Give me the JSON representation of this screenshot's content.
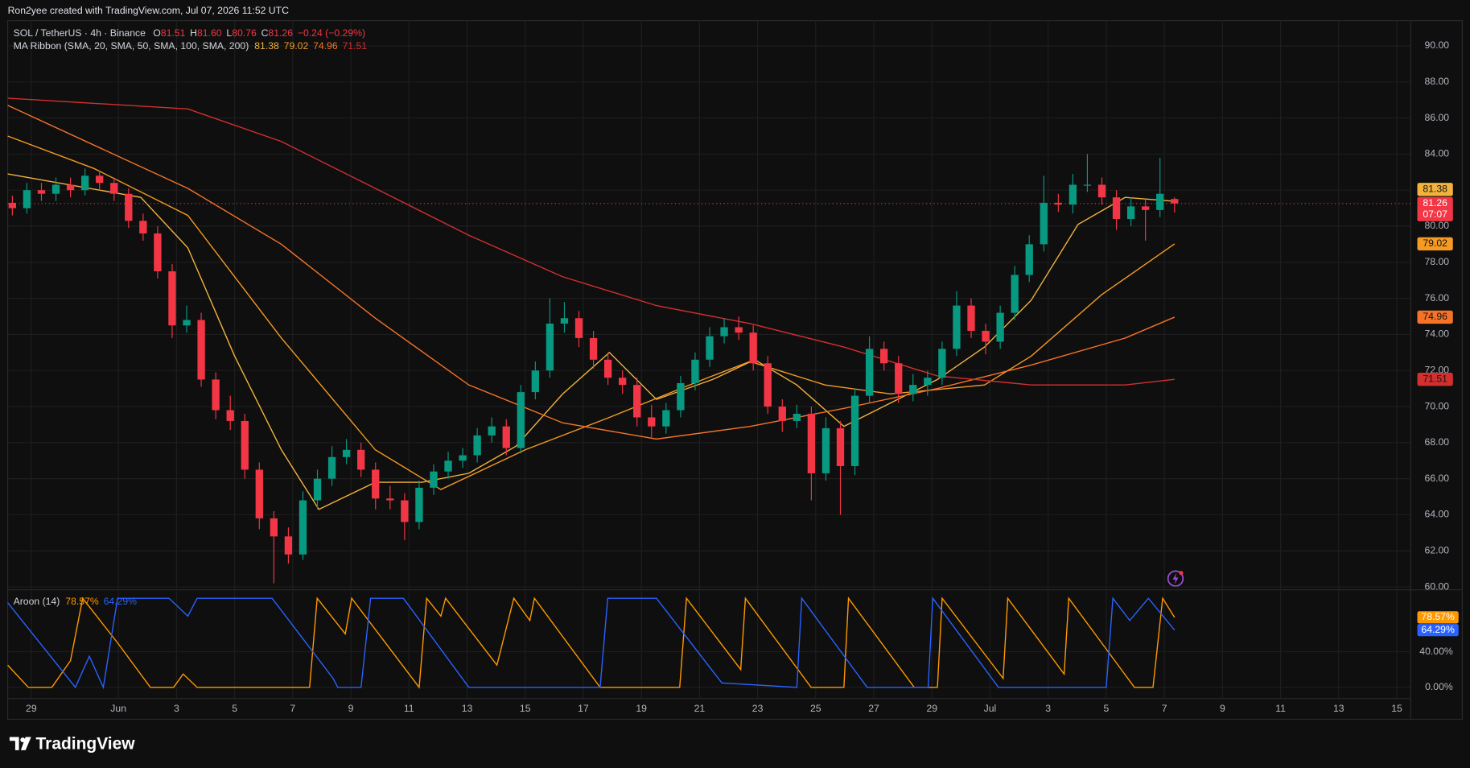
{
  "header": {
    "attribution": "Ron2yee created with TradingView.com, Jul 07, 2026 11:52 UTC"
  },
  "chart_data": {
    "type": "candlestick",
    "symbol": "SOL / TetherUS · 4h · Binance",
    "legend_ohlc": [
      {
        "key": "O",
        "label": "81.51"
      },
      {
        "key": "H",
        "label": "81.60"
      },
      {
        "key": "L",
        "label": "80.76"
      },
      {
        "key": "C",
        "label": "81.26"
      }
    ],
    "change": "−0.24 (−0.29%)",
    "countdown": "07:07",
    "up_color": "#089981",
    "down_color": "#f23645",
    "x": [
      -0.65,
      -0.15,
      0.35,
      0.85,
      1.35,
      1.85,
      2.35,
      2.85,
      3.35,
      3.85,
      4.35,
      4.85,
      5.35,
      5.85,
      6.35,
      6.85,
      7.35,
      7.85,
      8.35,
      8.85,
      9.35,
      9.85,
      10.35,
      10.85,
      11.35,
      11.85,
      12.35,
      12.85,
      13.35,
      13.85,
      14.35,
      14.85,
      15.35,
      15.85,
      16.35,
      16.85,
      17.35,
      17.85,
      18.35,
      18.85,
      19.35,
      19.85,
      20.35,
      20.85,
      21.35,
      21.85,
      22.35,
      22.85,
      23.35,
      23.85,
      24.35,
      24.85,
      25.35,
      25.85,
      26.35,
      26.85,
      27.35,
      27.85,
      28.35,
      28.85,
      29.35,
      29.85,
      30.35,
      30.85,
      31.35,
      31.85,
      32.35,
      32.85,
      33.35,
      33.85,
      34.35,
      34.85,
      35.35,
      35.85,
      36.35,
      36.85,
      37.35,
      37.85,
      38.35,
      38.85,
      39.35
    ],
    "open": [
      81.3,
      81.0,
      82.0,
      81.8,
      82.3,
      82.0,
      82.8,
      82.4,
      81.8,
      80.3,
      79.6,
      77.5,
      74.5,
      74.8,
      71.5,
      69.8,
      69.2,
      66.5,
      63.8,
      62.8,
      61.8,
      64.8,
      66.0,
      67.2,
      67.6,
      66.5,
      64.9,
      64.8,
      63.6,
      65.5,
      66.4,
      67.0,
      67.3,
      68.4,
      68.9,
      67.7,
      70.8,
      72.0,
      74.6,
      74.9,
      73.8,
      72.6,
      71.6,
      71.2,
      69.4,
      68.9,
      69.8,
      71.3,
      72.6,
      73.9,
      74.4,
      74.1,
      72.4,
      70.0,
      69.2,
      69.6,
      66.3,
      68.8,
      66.7,
      70.6,
      73.2,
      72.4,
      70.7,
      71.2,
      71.6,
      73.2,
      75.6,
      74.2,
      73.6,
      75.2,
      77.3,
      79.0,
      81.3,
      81.2,
      82.3,
      82.3,
      81.6,
      80.4,
      81.1,
      80.9,
      81.51
    ],
    "high": [
      81.7,
      82.4,
      82.4,
      82.7,
      82.7,
      83.2,
      83.1,
      82.7,
      82.1,
      80.7,
      80.0,
      77.9,
      75.6,
      75.2,
      71.9,
      70.6,
      69.6,
      66.9,
      64.2,
      63.3,
      65.3,
      66.5,
      67.8,
      68.2,
      68.0,
      66.9,
      65.6,
      65.2,
      65.9,
      66.8,
      67.5,
      67.7,
      68.8,
      69.4,
      69.3,
      71.2,
      72.5,
      76.0,
      75.8,
      75.3,
      74.2,
      73.0,
      72.0,
      71.6,
      70.1,
      70.2,
      71.7,
      73.0,
      74.4,
      74.9,
      75.0,
      74.5,
      72.8,
      70.4,
      70.1,
      70.0,
      69.4,
      69.2,
      71.0,
      73.9,
      73.6,
      72.8,
      71.8,
      72.0,
      73.6,
      76.4,
      76.0,
      74.6,
      75.6,
      77.8,
      79.5,
      82.8,
      81.8,
      82.9,
      84.0,
      82.7,
      82.0,
      81.6,
      81.5,
      83.8,
      81.6
    ],
    "low": [
      80.6,
      80.7,
      81.4,
      81.4,
      81.6,
      81.7,
      82.0,
      81.4,
      79.9,
      79.2,
      77.1,
      73.8,
      74.1,
      71.1,
      69.3,
      68.7,
      66.0,
      63.2,
      60.2,
      61.3,
      61.5,
      64.3,
      65.6,
      66.8,
      66.1,
      64.3,
      64.3,
      62.6,
      63.2,
      65.1,
      66.0,
      66.6,
      66.9,
      68.0,
      67.3,
      67.4,
      70.4,
      71.6,
      74.1,
      73.3,
      72.1,
      71.2,
      70.7,
      68.9,
      68.3,
      68.5,
      69.4,
      70.9,
      72.2,
      73.5,
      73.7,
      72.0,
      69.6,
      68.6,
      68.8,
      64.8,
      65.9,
      64.0,
      66.2,
      70.2,
      72.0,
      70.2,
      70.3,
      70.6,
      71.2,
      72.8,
      73.8,
      72.9,
      73.2,
      74.8,
      76.9,
      78.6,
      80.8,
      80.7,
      81.9,
      81.2,
      79.8,
      80.0,
      79.2,
      80.5,
      80.76
    ],
    "close": [
      81.0,
      82.0,
      81.8,
      82.3,
      82.0,
      82.8,
      82.4,
      81.8,
      80.3,
      79.6,
      77.5,
      74.5,
      74.8,
      71.5,
      69.8,
      69.2,
      66.5,
      63.8,
      62.8,
      61.8,
      64.8,
      66.0,
      67.2,
      67.6,
      66.5,
      64.9,
      64.8,
      63.6,
      65.5,
      66.4,
      67.0,
      67.3,
      68.4,
      68.9,
      67.7,
      70.8,
      72.0,
      74.6,
      74.9,
      73.8,
      72.6,
      71.6,
      71.2,
      69.4,
      68.9,
      69.8,
      71.3,
      72.6,
      73.9,
      74.4,
      74.1,
      72.4,
      70.0,
      69.2,
      69.6,
      66.3,
      68.8,
      66.7,
      70.6,
      73.2,
      72.4,
      70.7,
      71.2,
      71.6,
      73.2,
      75.6,
      74.2,
      73.6,
      75.2,
      77.3,
      79.0,
      81.3,
      81.2,
      82.3,
      82.3,
      81.6,
      80.4,
      81.1,
      80.9,
      81.8,
      81.26
    ],
    "xlim": [
      -0.81,
      47.48
    ],
    "xticks": [
      {
        "value": 0,
        "label": "29"
      },
      {
        "value": 3,
        "label": "Jun"
      },
      {
        "value": 5,
        "label": "3"
      },
      {
        "value": 7,
        "label": "5"
      },
      {
        "value": 9,
        "label": "7"
      },
      {
        "value": 11,
        "label": "9"
      },
      {
        "value": 13,
        "label": "11"
      },
      {
        "value": 15,
        "label": "13"
      },
      {
        "value": 17,
        "label": "15"
      },
      {
        "value": 19,
        "label": "17"
      },
      {
        "value": 21,
        "label": "19"
      },
      {
        "value": 23,
        "label": "21"
      },
      {
        "value": 25,
        "label": "23"
      },
      {
        "value": 27,
        "label": "25"
      },
      {
        "value": 29,
        "label": "27"
      },
      {
        "value": 31,
        "label": "29"
      },
      {
        "value": 33,
        "label": "Jul"
      },
      {
        "value": 35,
        "label": "3"
      },
      {
        "value": 37,
        "label": "5"
      },
      {
        "value": 39,
        "label": "7"
      },
      {
        "value": 41,
        "label": "9"
      },
      {
        "value": 43,
        "label": "11"
      },
      {
        "value": 45,
        "label": "13"
      },
      {
        "value": 47,
        "label": "15"
      }
    ],
    "ylim": [
      59.89,
      91.4
    ],
    "yticks": [
      {
        "value": 60,
        "label": "60.00"
      },
      {
        "value": 62,
        "label": "62.00"
      },
      {
        "value": 64,
        "label": "64.00"
      },
      {
        "value": 66,
        "label": "66.00"
      },
      {
        "value": 68,
        "label": "68.00"
      },
      {
        "value": 70,
        "label": "70.00"
      },
      {
        "value": 72,
        "label": "72.00"
      },
      {
        "value": 74,
        "label": "74.00"
      },
      {
        "value": 76,
        "label": "76.00"
      },
      {
        "value": 78,
        "label": "78.00"
      },
      {
        "value": 80,
        "label": "80.00"
      },
      {
        "value": 82,
        "label": "82.00"
      },
      {
        "value": 84,
        "label": "84.00"
      },
      {
        "value": 86,
        "label": "86.00"
      },
      {
        "value": 88,
        "label": "88.00"
      },
      {
        "value": 90,
        "label": "90.00"
      }
    ],
    "grid": true,
    "overlay": {
      "type": "line",
      "name": "MA Ribbon (SMA, 20, SMA, 50, SMA, 100, SMA, 200)",
      "series": [
        {
          "color": "#f2b33d",
          "x": [
            -0.81,
            3.77,
            5.39,
            7.0,
            8.61,
            9.9,
            11.84,
            13.45,
            15.06,
            16.68,
            18.29,
            19.9,
            21.52,
            23.45,
            24.9,
            26.35,
            27.97,
            29.58,
            31.19,
            32.81,
            34.42,
            36.03,
            37.65,
            39.35
          ],
          "values": [
            82.9,
            81.6,
            78.8,
            72.8,
            67.6,
            64.3,
            65.8,
            65.8,
            66.3,
            67.8,
            70.7,
            73.0,
            70.4,
            71.5,
            72.6,
            71.2,
            68.9,
            70.2,
            71.5,
            73.3,
            75.9,
            80.1,
            81.6,
            81.38
          ]
        },
        {
          "color": "#f59a23",
          "x": [
            -0.81,
            2.16,
            5.39,
            8.61,
            11.84,
            14.1,
            17.0,
            19.9,
            23.13,
            24.74,
            27.32,
            29.58,
            32.81,
            34.42,
            36.84,
            39.35
          ],
          "values": [
            85.0,
            83.2,
            80.6,
            73.8,
            67.6,
            65.4,
            67.6,
            69.4,
            71.5,
            72.5,
            71.2,
            70.7,
            71.2,
            72.8,
            76.2,
            79.02
          ]
        },
        {
          "color": "#f57328",
          "x": [
            -0.81,
            5.39,
            8.61,
            11.84,
            15.06,
            18.29,
            21.52,
            24.74,
            27.97,
            31.19,
            34.42,
            37.65,
            39.35
          ],
          "values": [
            86.7,
            82.1,
            79.0,
            74.9,
            71.2,
            69.1,
            68.2,
            68.9,
            69.9,
            71.0,
            72.3,
            73.8,
            74.96
          ]
        },
        {
          "color": "#d32f2f",
          "x": [
            -0.81,
            5.39,
            8.61,
            11.84,
            15.06,
            18.29,
            21.52,
            24.74,
            27.97,
            31.19,
            34.42,
            37.65,
            39.35
          ],
          "values": [
            87.1,
            86.5,
            84.7,
            82.1,
            79.5,
            77.2,
            75.6,
            74.6,
            73.3,
            71.7,
            71.2,
            71.2,
            71.51
          ]
        }
      ]
    },
    "indicator": {
      "type": "line",
      "name": "Aroon (14)",
      "ylim": [
        -12.6,
        108.4
      ],
      "yticks": [
        {
          "value": 0,
          "label": "0.00%"
        },
        {
          "value": 40,
          "label": "40.00%"
        }
      ],
      "series": [
        {
          "color": "#ff9800",
          "last_label": "78.57%",
          "x": [
            -0.81,
            -0.1,
            0.71,
            1.35,
            1.77,
            2.97,
            4.1,
            4.9,
            5.23,
            5.71,
            9.58,
            9.84,
            10.81,
            11.03,
            13.35,
            13.61,
            14.1,
            14.26,
            16.03,
            16.61,
            17.16,
            17.32,
            19.58,
            22.32,
            22.55,
            24.42,
            24.58,
            26.84,
            27.97,
            28.13,
            30.39,
            31.19,
            31.35,
            33.45,
            33.61,
            35.55,
            35.71,
            37.97,
            38.61,
            38.94,
            39.35
          ],
          "values": [
            25,
            0,
            0,
            30,
            100,
            50,
            0,
            0,
            15,
            0,
            0,
            100,
            60,
            100,
            0,
            100,
            80,
            100,
            25,
            100,
            75,
            100,
            0,
            0,
            100,
            20,
            100,
            0,
            0,
            100,
            0,
            0,
            100,
            10,
            100,
            15,
            100,
            0,
            0,
            100,
            78.57
          ]
        },
        {
          "color": "#2962ff",
          "last_label": "64.29%",
          "x": [
            -0.81,
            1.52,
            2.0,
            2.48,
            2.97,
            4.1,
            4.74,
            5.39,
            5.71,
            6.84,
            7.16,
            8.29,
            10.39,
            10.55,
            11.35,
            11.68,
            12.81,
            15.06,
            19.58,
            19.84,
            21.52,
            23.77,
            26.35,
            26.52,
            28.77,
            30.87,
            31.03,
            33.29,
            37.0,
            37.23,
            37.81,
            38.45,
            39.35
          ],
          "values": [
            95,
            0,
            35,
            0,
            100,
            100,
            100,
            80,
            100,
            100,
            100,
            100,
            10,
            0,
            0,
            100,
            100,
            0,
            0,
            100,
            100,
            5,
            0,
            100,
            0,
            0,
            100,
            0,
            0,
            100,
            75,
            100,
            64.29
          ]
        }
      ]
    }
  },
  "footer": {
    "logo": "TradingView"
  }
}
